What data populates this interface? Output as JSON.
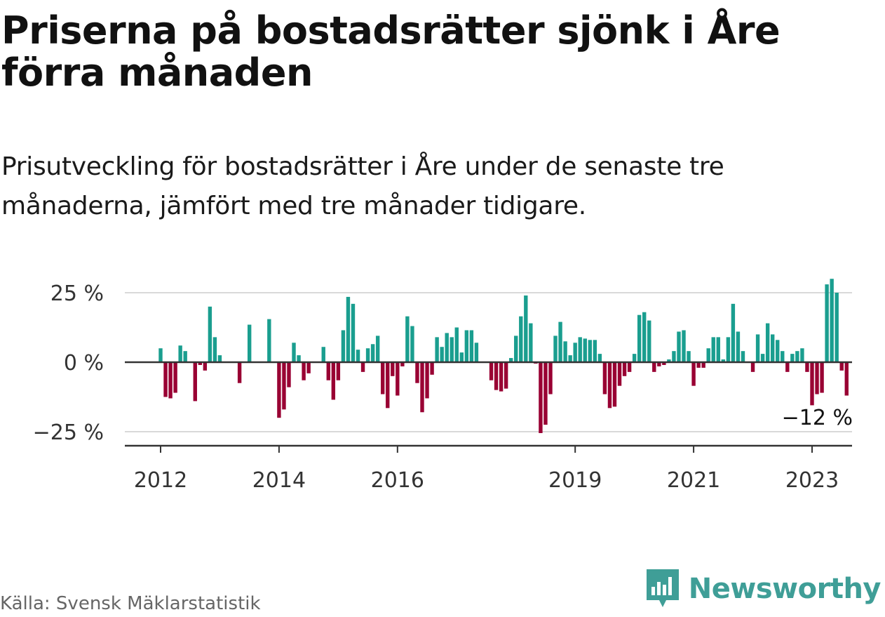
{
  "title": "Priserna på bostadsrätter sjönk i Åre förra månaden",
  "subtitle": "Prisutveckling för bostadsrätter i Åre under de senaste tre månaderna, jämfört med tre månader tidigare.",
  "source": "Källa: Svensk Mäklarstatistik",
  "brand": {
    "name": "Newsworthy",
    "icon": "newsworthy-logo-icon"
  },
  "colors": {
    "positive": "#1a9e8f",
    "negative": "#990033",
    "brand": "#3f9e97"
  },
  "chart_data": {
    "type": "bar",
    "x_start": "2012-01",
    "x_end": "2023-01",
    "values": [
      5,
      -12.5,
      -13,
      -11,
      6,
      4,
      null,
      -14,
      -1,
      -3,
      20,
      9,
      2.5,
      null,
      null,
      null,
      -7.5,
      null,
      13.5,
      null,
      null,
      null,
      15.5,
      null,
      -20,
      -17,
      -9,
      7,
      2.5,
      -6.5,
      -4,
      null,
      null,
      5.5,
      -6.5,
      -13.5,
      -6.5,
      11.5,
      23.5,
      21,
      4.5,
      -3.5,
      5,
      6.5,
      9.5,
      -11.5,
      -16.5,
      -5,
      -12,
      -1.5,
      16.5,
      13,
      -7.5,
      -18,
      -13,
      -4.5,
      9,
      5.5,
      10.5,
      9,
      12.5,
      3.5,
      11.5,
      11.5,
      7,
      null,
      null,
      -6.5,
      -10,
      -10.5,
      -9.5,
      1.5,
      9.5,
      16.5,
      24,
      14,
      -0.5,
      -25.5,
      -22.5,
      -11.5,
      9.5,
      14.5,
      7.5,
      2.5,
      7,
      9,
      8.5,
      8,
      8,
      3,
      -11.5,
      -16.5,
      -16,
      -8.5,
      -5,
      -3.5,
      3,
      17,
      18,
      15,
      -3.5,
      -1.5,
      -1,
      1,
      4,
      11,
      11.5,
      4,
      -8.5,
      -2,
      -2,
      5,
      9,
      9,
      1,
      9,
      21,
      11,
      4,
      null,
      -3.5,
      10,
      3,
      14,
      10,
      8,
      4,
      -3.5,
      3,
      4,
      5,
      -3.5,
      -15.5,
      -11.5,
      -11,
      28,
      30,
      25,
      -3,
      -12
    ],
    "ylim": [
      -28,
      32
    ],
    "yticks": [
      {
        "value": 25,
        "label": "25 %"
      },
      {
        "value": 0,
        "label": "0 %"
      },
      {
        "value": -25,
        "label": "−25 %"
      }
    ],
    "xticks": [
      {
        "date": "2012-01",
        "label": "2012"
      },
      {
        "date": "2014-01",
        "label": "2014"
      },
      {
        "date": "2016-01",
        "label": "2016"
      },
      {
        "date": "2019-01",
        "label": "2019"
      },
      {
        "date": "2021-01",
        "label": "2021"
      },
      {
        "date": "2023-01",
        "label": "2023"
      }
    ],
    "annotation": {
      "date": "2023-01",
      "text": "−12 %"
    },
    "grid": true
  }
}
